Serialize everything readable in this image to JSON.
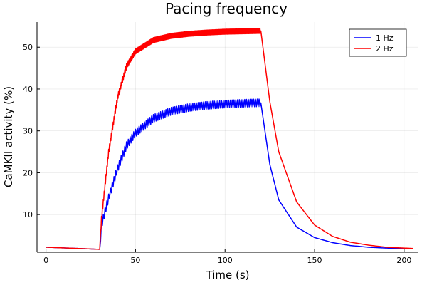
{
  "chart_data": {
    "type": "line",
    "title": "Pacing frequency",
    "xlabel": "Time (s)",
    "ylabel": "CaMKII activity (%)",
    "xlim": [
      -5,
      208
    ],
    "ylim": [
      1,
      56
    ],
    "xticks": [
      0,
      50,
      100,
      150,
      200
    ],
    "yticks": [
      10,
      20,
      30,
      40,
      50
    ],
    "grid": true,
    "legend_position": "top-right",
    "series": [
      {
        "name": "1 Hz",
        "color": "#0000ff",
        "pacing_hz": 1,
        "pacing_start": 30,
        "pacing_stop": 120,
        "points": [
          [
            0,
            2.2
          ],
          [
            30,
            1.7
          ],
          [
            31,
            7.5
          ],
          [
            35,
            14
          ],
          [
            40,
            21
          ],
          [
            45,
            26.5
          ],
          [
            50,
            29.5
          ],
          [
            60,
            33
          ],
          [
            70,
            34.7
          ],
          [
            80,
            35.6
          ],
          [
            90,
            36.1
          ],
          [
            100,
            36.4
          ],
          [
            110,
            36.6
          ],
          [
            120,
            36.7
          ],
          [
            125,
            22
          ],
          [
            130,
            13.5
          ],
          [
            140,
            7
          ],
          [
            150,
            4.5
          ],
          [
            160,
            3.3
          ],
          [
            170,
            2.6
          ],
          [
            180,
            2.2
          ],
          [
            190,
            2
          ],
          [
            205,
            1.8
          ]
        ],
        "oscillation_amplitude": 0.9
      },
      {
        "name": "2 Hz",
        "color": "#ff0000",
        "pacing_hz": 2,
        "pacing_start": 30,
        "pacing_stop": 120,
        "points": [
          [
            0,
            2.2
          ],
          [
            30,
            1.7
          ],
          [
            31,
            9
          ],
          [
            35,
            25
          ],
          [
            40,
            38
          ],
          [
            45,
            45.5
          ],
          [
            50,
            49
          ],
          [
            60,
            51.7
          ],
          [
            70,
            52.7
          ],
          [
            80,
            53.2
          ],
          [
            90,
            53.5
          ],
          [
            100,
            53.7
          ],
          [
            110,
            53.8
          ],
          [
            120,
            53.9
          ],
          [
            125,
            37
          ],
          [
            130,
            25
          ],
          [
            140,
            13
          ],
          [
            150,
            7.5
          ],
          [
            160,
            4.8
          ],
          [
            170,
            3.4
          ],
          [
            180,
            2.7
          ],
          [
            190,
            2.2
          ],
          [
            205,
            1.9
          ]
        ],
        "oscillation_amplitude": 0.6
      }
    ]
  }
}
